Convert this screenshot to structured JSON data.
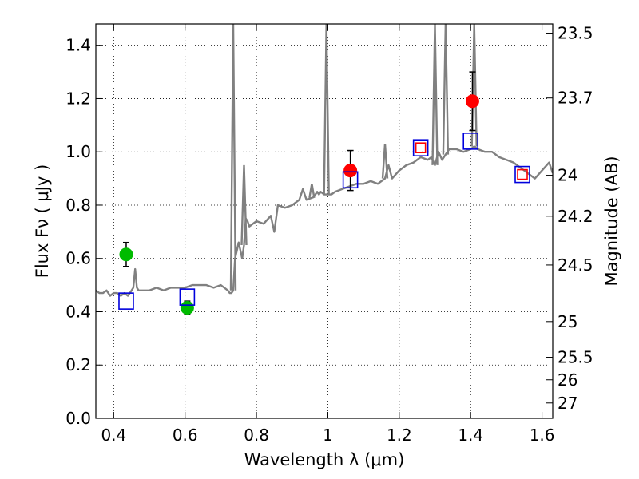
{
  "chart_data": {
    "type": "line",
    "xlabel": "Wavelength  λ (μm)",
    "ylabel": "Flux  Fν  ( μJy )",
    "ylabel_right": "Magnitude (AB)",
    "xlim": [
      0.35,
      1.63
    ],
    "ylim": [
      0.0,
      1.48
    ],
    "x_ticks": [
      {
        "value": 0.4,
        "label": "0.4"
      },
      {
        "value": 0.6,
        "label": "0.6"
      },
      {
        "value": 0.8,
        "label": "0.8"
      },
      {
        "value": 1.0,
        "label": "1"
      },
      {
        "value": 1.2,
        "label": "1.2"
      },
      {
        "value": 1.4,
        "label": "1.4"
      },
      {
        "value": 1.6,
        "label": "1.6"
      }
    ],
    "y_ticks": [
      {
        "value": 0.0,
        "label": "0.0"
      },
      {
        "value": 0.2,
        "label": "0.2"
      },
      {
        "value": 0.4,
        "label": "0.4"
      },
      {
        "value": 0.6,
        "label": "0.6"
      },
      {
        "value": 0.8,
        "label": "0.8"
      },
      {
        "value": 1.0,
        "label": "1.0"
      },
      {
        "value": 1.2,
        "label": "1.2"
      },
      {
        "value": 1.4,
        "label": "1.4"
      }
    ],
    "y_ticks_right": [
      {
        "label": "23.5",
        "value": 23.5
      },
      {
        "label": "23.7",
        "value": 23.7
      },
      {
        "label": "24",
        "value": 24
      },
      {
        "label": "24.2",
        "value": 24.2
      },
      {
        "label": "24.5",
        "value": 24.5
      },
      {
        "label": "25",
        "value": 25
      },
      {
        "label": "25.5",
        "value": 25.5
      },
      {
        "label": "26",
        "value": 26
      },
      {
        "label": "27",
        "value": 27
      }
    ],
    "grid": true,
    "model_spectrum": {
      "color": "#808080",
      "x": [
        0.35,
        0.36,
        0.37,
        0.38,
        0.39,
        0.4,
        0.41,
        0.42,
        0.43,
        0.44,
        0.45,
        0.455,
        0.46,
        0.465,
        0.47,
        0.48,
        0.5,
        0.52,
        0.54,
        0.56,
        0.58,
        0.6,
        0.62,
        0.64,
        0.66,
        0.68,
        0.7,
        0.72,
        0.725,
        0.73,
        0.735,
        0.74,
        0.75,
        0.76,
        0.765,
        0.77,
        0.775,
        0.78,
        0.8,
        0.82,
        0.84,
        0.85,
        0.86,
        0.88,
        0.9,
        0.92,
        0.93,
        0.94,
        0.96,
        0.97,
        0.975,
        0.98,
        0.99,
        1.0,
        1.01,
        1.02,
        1.04,
        1.06,
        1.08,
        1.1,
        1.12,
        1.14,
        1.16,
        1.17,
        1.18,
        1.2,
        1.22,
        1.24,
        1.26,
        1.28,
        1.29,
        1.3,
        1.31,
        1.32,
        1.33,
        1.34,
        1.36,
        1.38,
        1.4,
        1.41,
        1.42,
        1.44,
        1.46,
        1.48,
        1.5,
        1.52,
        1.54,
        1.56,
        1.58,
        1.6,
        1.62,
        1.63
      ],
      "y": [
        0.48,
        0.47,
        0.47,
        0.48,
        0.46,
        0.47,
        0.47,
        0.46,
        0.47,
        0.46,
        0.48,
        0.49,
        0.56,
        0.49,
        0.48,
        0.48,
        0.48,
        0.49,
        0.48,
        0.49,
        0.49,
        0.49,
        0.5,
        0.5,
        0.5,
        0.49,
        0.5,
        0.48,
        0.47,
        0.47,
        0.48,
        0.6,
        0.66,
        0.6,
        0.65,
        0.75,
        0.74,
        0.72,
        0.74,
        0.73,
        0.76,
        0.7,
        0.8,
        0.79,
        0.8,
        0.82,
        0.86,
        0.82,
        0.83,
        0.85,
        0.84,
        0.85,
        0.84,
        0.84,
        0.84,
        0.85,
        0.86,
        0.87,
        0.88,
        0.88,
        0.89,
        0.88,
        0.9,
        0.95,
        0.9,
        0.93,
        0.95,
        0.96,
        0.98,
        0.97,
        0.98,
        0.95,
        1.0,
        0.97,
        0.99,
        1.01,
        1.01,
        1.0,
        1.01,
        1.02,
        1.01,
        1.0,
        1.0,
        0.98,
        0.97,
        0.96,
        0.94,
        0.92,
        0.9,
        0.93,
        0.96,
        0.92
      ],
      "emission_lines": [
        {
          "x": 0.735,
          "peak": 1.48
        },
        {
          "x": 0.765,
          "peak": 0.95
        },
        {
          "x": 0.955,
          "peak": 0.88
        },
        {
          "x": 0.996,
          "peak": 1.48
        },
        {
          "x": 1.16,
          "peak": 1.03
        },
        {
          "x": 1.3,
          "peak": 1.48
        },
        {
          "x": 1.33,
          "peak": 1.48
        },
        {
          "x": 1.41,
          "peak": 1.48
        }
      ]
    },
    "series": [
      {
        "marker": "circle",
        "color": "#00bb00",
        "points": [
          {
            "x": 0.435,
            "y": 0.615,
            "yerr": 0.045
          },
          {
            "x": 0.606,
            "y": 0.415,
            "yerr": 0.025
          }
        ]
      },
      {
        "marker": "circle",
        "color": "#ff0000",
        "points": [
          {
            "x": 1.063,
            "y": 0.93,
            "yerr": 0.075
          },
          {
            "x": 1.405,
            "y": 1.19,
            "yerr": 0.11
          }
        ]
      },
      {
        "marker": "open-square",
        "color": "#0000dd",
        "points": [
          {
            "x": 0.435,
            "y": 0.44
          },
          {
            "x": 0.606,
            "y": 0.455
          },
          {
            "x": 1.063,
            "y": 0.895
          },
          {
            "x": 1.26,
            "y": 1.015
          },
          {
            "x": 1.4,
            "y": 1.04
          },
          {
            "x": 1.545,
            "y": 0.915
          }
        ]
      },
      {
        "marker": "open-square-small",
        "color": "#ff0000",
        "points": [
          {
            "x": 1.26,
            "y": 1.015
          },
          {
            "x": 1.545,
            "y": 0.915
          }
        ]
      }
    ]
  }
}
